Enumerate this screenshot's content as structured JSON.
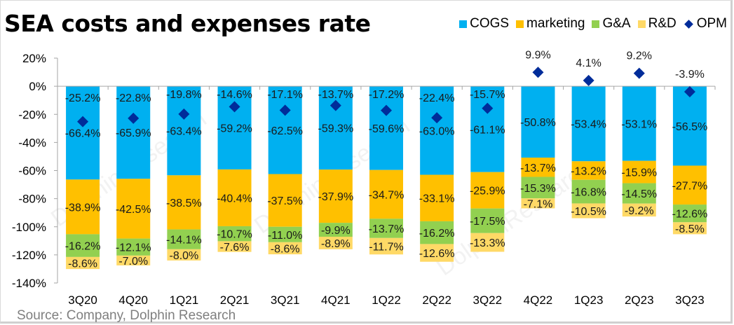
{
  "chart_data": {
    "type": "bar",
    "stacked": true,
    "title": "SEA costs and expenses rate",
    "xlabel": "",
    "ylabel": "",
    "ylim": [
      -140,
      20
    ],
    "yticks": [
      20,
      0,
      -20,
      -40,
      -60,
      -80,
      -100,
      -120,
      -140
    ],
    "ytick_labels": [
      "20%",
      "0%",
      "-20%",
      "-40%",
      "-60%",
      "-80%",
      "-100%",
      "-120%",
      "-140%"
    ],
    "grid": false,
    "legend_position": "top-right",
    "categories": [
      "3Q20",
      "4Q20",
      "1Q21",
      "2Q21",
      "3Q21",
      "4Q21",
      "1Q22",
      "2Q22",
      "3Q22",
      "4Q22",
      "1Q23",
      "2Q23",
      "3Q23"
    ],
    "series": [
      {
        "name": "COGS",
        "type": "bar",
        "color": "#00b0f0",
        "values": [
          -66.4,
          -65.9,
          -63.4,
          -59.2,
          -62.5,
          -59.3,
          -59.6,
          -63.0,
          -61.1,
          -50.8,
          -53.4,
          -53.1,
          -56.5
        ],
        "labels": [
          "-66.4%",
          "-65.9%",
          "-63.4%",
          "-59.2%",
          "-62.5%",
          "-59.3%",
          "-59.6%",
          "-63.0%",
          "-61.1%",
          "-50.8%",
          "-53.4%",
          "-53.1%",
          "-56.5%"
        ]
      },
      {
        "name": "marketing",
        "type": "bar",
        "color": "#ffc000",
        "values": [
          -38.9,
          -42.5,
          -38.5,
          -40.4,
          -37.5,
          -37.9,
          -34.7,
          -33.1,
          -25.9,
          -13.7,
          -13.2,
          -15.9,
          -27.7
        ],
        "labels": [
          "-38.9%",
          "-42.5%",
          "-38.5%",
          "-40.4%",
          "-37.5%",
          "-37.9%",
          "-34.7%",
          "-33.1%",
          "-25.9%",
          "-13.7%",
          "-13.2%",
          "-15.9%",
          "-27.7%"
        ]
      },
      {
        "name": "G&A",
        "type": "bar",
        "color": "#92d050",
        "values": [
          -16.2,
          -12.1,
          -14.1,
          -10.7,
          -11.0,
          -9.9,
          -13.7,
          -16.2,
          -17.5,
          -15.3,
          -16.8,
          -14.5,
          -12.6
        ],
        "labels": [
          "-16.2%",
          "-12.1%",
          "-14.1%",
          "-10.7%",
          "-11.0%",
          "-9.9%",
          "-13.7%",
          "-16.2%",
          "-17.5%",
          "-15.3%",
          "-16.8%",
          "-14.5%",
          "-12.6%"
        ]
      },
      {
        "name": "R&D",
        "type": "bar",
        "color": "#ffd966",
        "values": [
          -8.6,
          -7.0,
          -8.0,
          -7.6,
          -8.6,
          -8.9,
          -11.7,
          -12.6,
          -13.3,
          -7.1,
          -10.5,
          -9.2,
          -8.5
        ],
        "labels": [
          "-8.6%",
          "-7.0%",
          "-8.0%",
          "-7.6%",
          "-8.6%",
          "-8.9%",
          "-11.7%",
          "-12.6%",
          "-13.3%",
          "-7.1%",
          "-10.5%",
          "-9.2%",
          "-8.5%"
        ]
      },
      {
        "name": "OPM",
        "type": "scatter",
        "marker": "diamond",
        "color": "#002c9a",
        "values": [
          -25.2,
          -22.8,
          -19.8,
          -14.6,
          -17.1,
          -13.7,
          -17.2,
          -22.4,
          -15.7,
          9.9,
          4.1,
          9.2,
          -3.9
        ],
        "labels": [
          "-25.2%",
          "-22.8%",
          "-19.8%",
          "-14.6%",
          "-17.1%",
          "-13.7%",
          "-17.2%",
          "-22.4%",
          "-15.7%",
          "9.9%",
          "4.1%",
          "9.2%",
          "-3.9%"
        ]
      }
    ],
    "source": "Source: Company, Dolphin Research",
    "watermark": "DolphinResearch"
  },
  "legend": [
    {
      "label": "COGS",
      "color": "#00b0f0",
      "shape": "square"
    },
    {
      "label": "marketing",
      "color": "#ffc000",
      "shape": "square"
    },
    {
      "label": "G&A",
      "color": "#92d050",
      "shape": "square"
    },
    {
      "label": "R&D",
      "color": "#ffd966",
      "shape": "square"
    },
    {
      "label": "OPM",
      "color": "#002c9a",
      "shape": "diamond"
    }
  ]
}
